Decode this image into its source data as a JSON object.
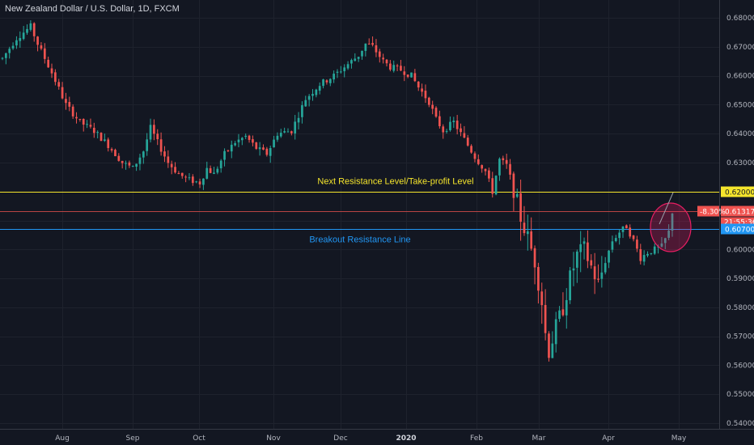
{
  "title": "New Zealand Dollar / U.S. Dollar, 1D, FXCM",
  "colors": {
    "background": "#131722",
    "grid": "#1e222d",
    "up": "#26a69a",
    "down": "#ef5350",
    "text": "#b2b5be",
    "resistance_line": "#f5e52c",
    "current_price_line": "#ef5350",
    "breakout_line": "#2196f3"
  },
  "chart_data": {
    "type": "candlestick",
    "symbol": "NZD/USD",
    "timeframe": "1D",
    "source": "FXCM",
    "ylim": [
      0.538,
      0.685
    ],
    "yticks": [
      "0.68000",
      "0.67000",
      "0.66000",
      "0.65000",
      "0.64000",
      "0.63000",
      "0.62000",
      "0.61000",
      "0.60000",
      "0.59000",
      "0.58000",
      "0.57000",
      "0.56000",
      "0.55000",
      "0.54000"
    ],
    "xtick_labels": [
      "Aug",
      "Sep",
      "Oct",
      "Nov",
      "Dec",
      "2020",
      "Feb",
      "Mar",
      "Apr",
      "May"
    ],
    "grid": true,
    "horizontal_levels": [
      {
        "label": "Next Resistance Level/Take-profit Level",
        "value": 0.62,
        "tag": "0.62000",
        "color": "#f5e52c"
      },
      {
        "label": "",
        "value": 0.61317,
        "tag": "0.61317",
        "change": "-8.30%",
        "countdown": "21:55:36",
        "color": "#ef5350"
      },
      {
        "label": "Breakout Resistance Line",
        "value": 0.607,
        "tag": "0.60700",
        "color": "#2196f3"
      }
    ],
    "path": [
      [
        0,
        0.666
      ],
      [
        4,
        0.673
      ],
      [
        8,
        0.677
      ],
      [
        10,
        0.671
      ],
      [
        14,
        0.661
      ],
      [
        18,
        0.65
      ],
      [
        22,
        0.644
      ],
      [
        26,
        0.641
      ],
      [
        30,
        0.636
      ],
      [
        34,
        0.63
      ],
      [
        37,
        0.628
      ],
      [
        40,
        0.634
      ],
      [
        42,
        0.642
      ],
      [
        44,
        0.637
      ],
      [
        47,
        0.63
      ],
      [
        50,
        0.626
      ],
      [
        53,
        0.624
      ],
      [
        56,
        0.623
      ],
      [
        58,
        0.628
      ],
      [
        60,
        0.626
      ],
      [
        63,
        0.633
      ],
      [
        66,
        0.637
      ],
      [
        69,
        0.639
      ],
      [
        72,
        0.635
      ],
      [
        75,
        0.633
      ],
      [
        78,
        0.64
      ],
      [
        82,
        0.641
      ],
      [
        86,
        0.652
      ],
      [
        90,
        0.657
      ],
      [
        94,
        0.66
      ],
      [
        98,
        0.664
      ],
      [
        101,
        0.667
      ],
      [
        103,
        0.671
      ],
      [
        105,
        0.67
      ],
      [
        108,
        0.665
      ],
      [
        110,
        0.663
      ],
      [
        113,
        0.662
      ],
      [
        116,
        0.66
      ],
      [
        118,
        0.656
      ],
      [
        121,
        0.651
      ],
      [
        123,
        0.645
      ],
      [
        125,
        0.641
      ],
      [
        128,
        0.644
      ],
      [
        131,
        0.638
      ],
      [
        134,
        0.632
      ],
      [
        137,
        0.627
      ],
      [
        139,
        0.62
      ],
      [
        141,
        0.631
      ],
      [
        143,
        0.629
      ],
      [
        145,
        0.621
      ],
      [
        147,
        0.611
      ],
      [
        149,
        0.604
      ],
      [
        151,
        0.596
      ],
      [
        153,
        0.582
      ],
      [
        154,
        0.571
      ],
      [
        155,
        0.565
      ],
      [
        157,
        0.573
      ],
      [
        159,
        0.58
      ],
      [
        161,
        0.59
      ],
      [
        163,
        0.598
      ],
      [
        165,
        0.6
      ],
      [
        167,
        0.594
      ],
      [
        169,
        0.588
      ],
      [
        171,
        0.596
      ],
      [
        173,
        0.603
      ],
      [
        175,
        0.606
      ],
      [
        177,
        0.608
      ],
      [
        179,
        0.603
      ],
      [
        181,
        0.597
      ],
      [
        183,
        0.599
      ],
      [
        185,
        0.6
      ],
      [
        187,
        0.601
      ],
      [
        189,
        0.606
      ],
      [
        190,
        0.613
      ]
    ],
    "highlight": {
      "shape": "ellipse",
      "color": "#e91e63"
    }
  }
}
